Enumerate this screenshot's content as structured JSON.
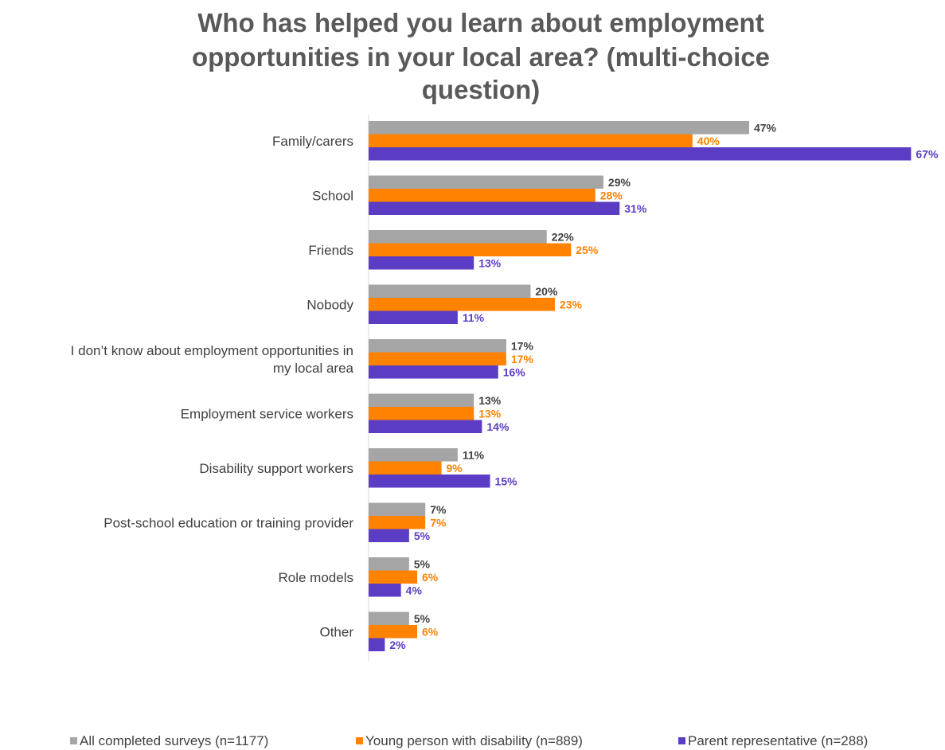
{
  "chart_data": {
    "type": "bar",
    "orientation": "horizontal",
    "title": "Who has helped you learn about employment opportunities in your local area? (multi-choice question)",
    "title_lines": [
      "Who has helped you learn about employment",
      "opportunities in your local area? (multi-choice",
      "question)"
    ],
    "categories": [
      "Family/carers",
      "School",
      "Friends",
      "Nobody",
      "I don’t know about employment opportunities in my local area",
      "Employment service workers",
      "Disability support workers",
      "Post-school education or training provider",
      "Role models",
      "Other"
    ],
    "category_lines": [
      [
        "Family/carers"
      ],
      [
        "School"
      ],
      [
        "Friends"
      ],
      [
        "Nobody"
      ],
      [
        "I don’t know about employment opportunities in",
        "my local area"
      ],
      [
        "Employment service workers"
      ],
      [
        "Disability support workers"
      ],
      [
        "Post-school education or training provider"
      ],
      [
        "Role models"
      ],
      [
        "Other"
      ]
    ],
    "series": [
      {
        "name": "All completed surveys (n=1177)",
        "color": "#a5a5a5",
        "label_color": "#404040",
        "values": [
          47,
          29,
          22,
          20,
          17,
          13,
          11,
          7,
          5,
          5
        ],
        "labels": [
          "47%",
          "29%",
          "22%",
          "20%",
          "17%",
          "13%",
          "11%",
          "7%",
          "5%",
          "5%"
        ]
      },
      {
        "name": "Young person with disability (n=889)",
        "color": "#ff8200",
        "label_color": "#ff8200",
        "values": [
          40,
          28,
          25,
          23,
          17,
          13,
          9,
          7,
          6,
          6
        ],
        "labels": [
          "40%",
          "28%",
          "25%",
          "23%",
          "17%",
          "13%",
          "9%",
          "7%",
          "6%",
          "6%"
        ]
      },
      {
        "name": "Parent representative (n=288)",
        "color": "#5b3cc4",
        "label_color": "#5b3cc4",
        "values": [
          67,
          31,
          13,
          11,
          16,
          14,
          15,
          5,
          4,
          2
        ],
        "labels": [
          "67%",
          "31%",
          "13%",
          "11%",
          "16%",
          "14%",
          "15%",
          "5%",
          "4%",
          "2%"
        ]
      }
    ],
    "xlim": [
      0,
      100
    ],
    "grid": false,
    "legend_position": "bottom"
  }
}
